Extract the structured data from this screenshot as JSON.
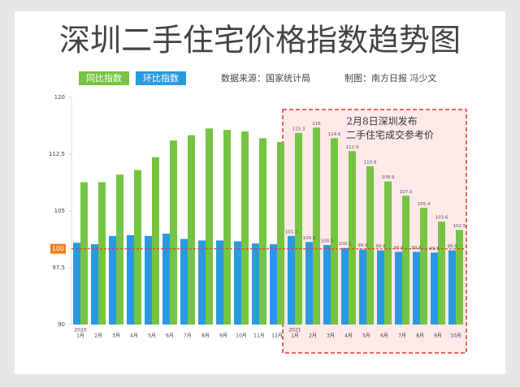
{
  "chart_data": {
    "type": "bar",
    "title": "深圳二手住宅价格指数趋势图",
    "source": "数据来源：国家统计局",
    "credit": "制图：南方日报 冯少文",
    "annotation": [
      "2月8日深圳发布",
      "二手住宅成交参考价"
    ],
    "categories": [
      "1月",
      "2月",
      "3月",
      "4月",
      "5月",
      "6月",
      "7月",
      "8月",
      "9月",
      "10月",
      "11月",
      "12月",
      "1月",
      "2月",
      "3月",
      "4月",
      "5月",
      "6月",
      "7月",
      "8月",
      "9月",
      "10月"
    ],
    "year_labels": [
      "2020",
      null,
      null,
      null,
      null,
      null,
      null,
      null,
      null,
      null,
      null,
      null,
      "2021",
      null,
      null,
      null,
      null,
      null,
      null,
      null,
      null,
      null
    ],
    "series": [
      {
        "name": "同比指数",
        "color": "#76c442",
        "values": [
          108.8,
          108.8,
          109.8,
          110.4,
          112.1,
          114.3,
          115.0,
          115.9,
          115.7,
          115.5,
          114.6,
          114.1,
          115.3,
          116,
          114.6,
          112.9,
          110.9,
          108.9,
          107.0,
          105.4,
          103.6,
          102.5
        ],
        "value_labels": [
          null,
          null,
          null,
          null,
          null,
          null,
          null,
          null,
          null,
          null,
          null,
          null,
          "115.3",
          "116",
          "114.6",
          "112.9",
          "110.9",
          "108.9",
          "107.0",
          "105.4",
          "103.6",
          "102.5"
        ]
      },
      {
        "name": "环比指数",
        "color": "#2a9ae0",
        "values": [
          100.8,
          100.6,
          101.7,
          101.8,
          101.7,
          102.0,
          101.3,
          101.1,
          101.1,
          101.0,
          100.7,
          100.6,
          101.7,
          100.9,
          100.5,
          100.1,
          99.9,
          99.8,
          99.6,
          99.6,
          99.5,
          99.8
        ],
        "value_labels": [
          null,
          null,
          null,
          null,
          null,
          null,
          null,
          null,
          null,
          null,
          null,
          null,
          "101.7",
          "100.9",
          "100.5",
          "100.1",
          "99.9",
          "99.8",
          "99.6",
          "99.6",
          "99.5",
          "99.8"
        ]
      }
    ],
    "reference_line": {
      "value": 100,
      "color": "#e23b2a"
    },
    "highlight_start": 12,
    "ylim": [
      90,
      120
    ],
    "yticks": [
      90,
      97.5,
      105,
      112.5,
      120
    ]
  }
}
